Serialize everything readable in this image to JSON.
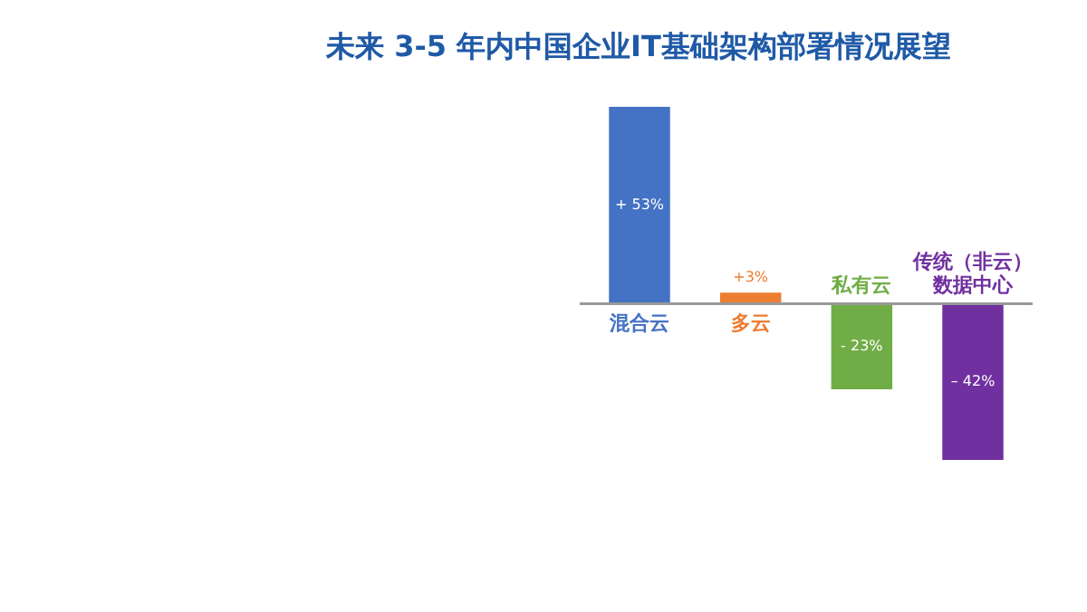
{
  "chart_data": {
    "type": "bar",
    "title": "未来 3-5 年内中国企业IT基础架构部署情况展望",
    "categories": [
      "混合云",
      "多云",
      "私有云",
      "传统（非云）数据中心"
    ],
    "values": [
      53,
      3,
      -23,
      -42
    ],
    "colors": [
      "#4472c4",
      "#ed7d31",
      "#70ad47",
      "#7030a0"
    ],
    "value_labels": [
      "+ 53%",
      "+3%",
      "- 23%",
      "– 42%"
    ]
  }
}
